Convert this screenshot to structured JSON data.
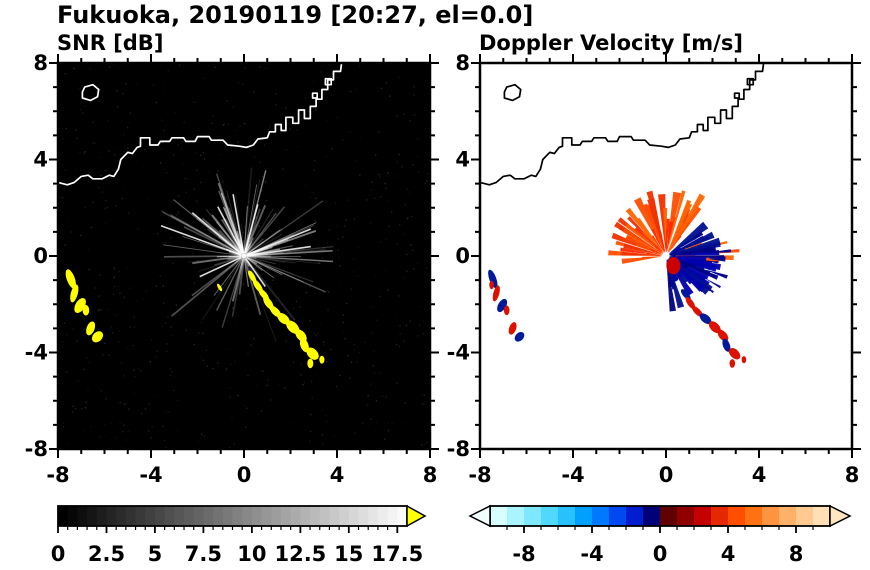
{
  "title": "Fukuoka, 20190119 [20:27, el=0.0]",
  "chart_data": {
    "type": "heatmap",
    "figure": "Dual-panel radar PPI display",
    "station": "Fukuoka",
    "date": "20190119",
    "time": "20:27",
    "elevation": "el=0.0",
    "title": "Fukuoka, 20190119 [20:27, el=0.0]",
    "axes": {
      "xlim": [
        -8,
        8
      ],
      "ylim": [
        -8,
        8
      ],
      "major_ticks": [
        -8,
        -4,
        0,
        4,
        8
      ],
      "minor_tick_step": 1,
      "tick_labels": [
        "-8",
        "-4",
        "0",
        "4",
        "8"
      ]
    },
    "radar_center": [
      0,
      0
    ],
    "panels": [
      {
        "id": "snr",
        "title": "SNR [dB]",
        "background": "#000000",
        "coast_color": "#ffffff",
        "features": [
          "Radial gray noise spokes centered on the radar at the origin",
          "Yellow (>18 dB) clutter cells near x=-7.5..-6.3, y=-0.9..-3.4",
          "Yellow echo chain from (0.3,-0.9) to (3.3,-4.4)"
        ],
        "colorbar": {
          "range": [
            0,
            18
          ],
          "tick_values": [
            0,
            2.5,
            5,
            7.5,
            10,
            12.5,
            15,
            17.5
          ],
          "tick_labels": [
            "0",
            "2.5",
            "5",
            "7.5",
            "10",
            "12.5",
            "15",
            "17.5"
          ],
          "colormap": "grayscale",
          "segments": 36,
          "over_color": "#ffff00"
        },
        "noise": {
          "count": 650,
          "seed": 3,
          "color": "#909090"
        },
        "spokes": {
          "count": 160,
          "sector_extra": 70,
          "seed": 11,
          "r0": 0.12,
          "len_min": 0.5,
          "len_max": 4.2,
          "sectors": [
            [
              55,
              185
            ],
            [
              -30,
              40
            ]
          ],
          "color": "#ffffff"
        },
        "bright_spokes": [
          {
            "angle": 160,
            "len": 3.8
          },
          {
            "angle": 100,
            "len": 2.7
          },
          {
            "angle": 118,
            "len": 2.4
          },
          {
            "angle": 22,
            "len": 3.1
          },
          {
            "angle": 8,
            "len": 2.9
          },
          {
            "angle": 205,
            "len": 2.1
          },
          {
            "angle": 75,
            "len": 2.3
          },
          {
            "angle": 140,
            "len": 2.9
          },
          {
            "angle": -55,
            "len": 1.6
          }
        ],
        "cells_color": "#ffff00",
        "cells": [
          {
            "x": -7.45,
            "y": -0.95,
            "rx": 0.17,
            "ry": 0.42,
            "rot": -20
          },
          {
            "x": -7.3,
            "y": -1.55,
            "rx": 0.15,
            "ry": 0.38,
            "rot": 15
          },
          {
            "x": -7.05,
            "y": -2.05,
            "rx": 0.2,
            "ry": 0.34,
            "rot": 30
          },
          {
            "x": -6.8,
            "y": -2.25,
            "rx": 0.14,
            "ry": 0.22,
            "rot": 0
          },
          {
            "x": -6.6,
            "y": -3.0,
            "rx": 0.17,
            "ry": 0.3,
            "rot": 20
          },
          {
            "x": -6.3,
            "y": -3.35,
            "rx": 0.2,
            "ry": 0.26,
            "rot": 45
          },
          {
            "x": 0.35,
            "y": -0.85,
            "rx": 0.11,
            "ry": 0.28,
            "rot": -30
          },
          {
            "x": 0.6,
            "y": -1.25,
            "rx": 0.13,
            "ry": 0.32,
            "rot": -35
          },
          {
            "x": 0.85,
            "y": -1.6,
            "rx": 0.13,
            "ry": 0.3,
            "rot": -40
          },
          {
            "x": 1.05,
            "y": -1.95,
            "rx": 0.15,
            "ry": 0.32,
            "rot": -35
          },
          {
            "x": 1.35,
            "y": -2.3,
            "rx": 0.15,
            "ry": 0.3,
            "rot": -45
          },
          {
            "x": 1.7,
            "y": -2.6,
            "rx": 0.19,
            "ry": 0.3,
            "rot": -50
          },
          {
            "x": 2.1,
            "y": -2.95,
            "rx": 0.21,
            "ry": 0.33,
            "rot": -45
          },
          {
            "x": 2.45,
            "y": -3.3,
            "rx": 0.19,
            "ry": 0.3,
            "rot": -40
          },
          {
            "x": 2.6,
            "y": -3.7,
            "rx": 0.17,
            "ry": 0.3,
            "rot": -20
          },
          {
            "x": 2.95,
            "y": -4.05,
            "rx": 0.21,
            "ry": 0.3,
            "rot": -45
          },
          {
            "x": 2.85,
            "y": -4.45,
            "rx": 0.13,
            "ry": 0.2,
            "rot": 0
          },
          {
            "x": 3.35,
            "y": -4.3,
            "rx": 0.11,
            "ry": 0.16,
            "rot": 0
          },
          {
            "x": -1.05,
            "y": -1.3,
            "rx": 0.07,
            "ry": 0.18,
            "rot": -30
          }
        ]
      },
      {
        "id": "vel",
        "title": "Doppler Velocity [m/s]",
        "background": "#ffffff",
        "coast_color": "#000000",
        "features": [
          "Orange/red positive Doppler fan north-west of radar (~+2..+4 m/s)",
          "Dark blue negative Doppler fan south-east of radar (~-1..-3 m/s)",
          "Small red/blue cells matching the SNR clutter locations"
        ],
        "colorbar": {
          "range": [
            -10,
            10
          ],
          "tick_values": [
            -8,
            -4,
            0,
            4,
            8
          ],
          "tick_labels": [
            "-8",
            "-4",
            "0",
            "4",
            "8"
          ],
          "segments": 20,
          "cell_colors": [
            "#d8ffff",
            "#aaf4ff",
            "#7de8ff",
            "#50d8ff",
            "#28c0ff",
            "#00a0ff",
            "#0078ff",
            "#0048f0",
            "#001ed0",
            "#000078",
            "#600000",
            "#900000",
            "#c40000",
            "#e62800",
            "#ff4e00",
            "#ff7214",
            "#ff9440",
            "#ffb168",
            "#ffc990",
            "#ffdfb4"
          ],
          "under_color": "#f0ffff",
          "over_color": "#ffe6c0"
        },
        "fans": [
          {
            "name": "positive-velocity-fan",
            "seed": 21,
            "count": 75,
            "angles": [
              50,
              190
            ],
            "r": [
              0.4,
              3.1
            ],
            "r0": 0.16,
            "pow": 1.2,
            "halfw": 2.4,
            "colors": [
              "#ff2600",
              "#ff4d00",
              "#ff6400",
              "#f03000"
            ]
          },
          {
            "name": "positive-right-streaks",
            "seed": 5,
            "count": 10,
            "angles": [
              -8,
              22
            ],
            "r": [
              1.0,
              3.2
            ],
            "r0": 0.2,
            "pow": 1,
            "halfw": 1.6,
            "colors": [
              "#ff4d00",
              "#ff6400"
            ]
          },
          {
            "name": "negative-velocity-fan",
            "seed": 33,
            "count": 95,
            "angles": [
              -85,
              38
            ],
            "r": [
              0.3,
              2.5
            ],
            "r0": 0.14,
            "pow": 1.4,
            "halfw": 3.2,
            "colors": [
              "#000080",
              "#0000b2",
              "#001090"
            ]
          },
          {
            "name": "negative-outliers",
            "seed": 8,
            "count": 12,
            "angles": [
              -40,
              25
            ],
            "r": [
              2.2,
              3.0
            ],
            "r0": 1.8,
            "pow": 1,
            "halfw": 1.2,
            "colors": [
              "#000090"
            ]
          }
        ],
        "inner_patch": {
          "x": 0.32,
          "y": -0.4,
          "rx": 0.3,
          "ry": 0.36,
          "color": "#cc0000"
        },
        "cells": [
          {
            "x": -7.45,
            "y": -0.95,
            "rx": 0.15,
            "ry": 0.4,
            "rot": -20,
            "color": "#001a99"
          },
          {
            "x": -7.5,
            "y": -1.2,
            "rx": 0.1,
            "ry": 0.18,
            "rot": 0,
            "color": "#dd1100"
          },
          {
            "x": -7.3,
            "y": -1.55,
            "rx": 0.13,
            "ry": 0.34,
            "rot": 15,
            "color": "#dd1100"
          },
          {
            "x": -7.05,
            "y": -2.05,
            "rx": 0.17,
            "ry": 0.3,
            "rot": 30,
            "color": "#001a99"
          },
          {
            "x": -6.85,
            "y": -2.25,
            "rx": 0.12,
            "ry": 0.2,
            "rot": 0,
            "color": "#dd1100"
          },
          {
            "x": -6.6,
            "y": -3.0,
            "rx": 0.15,
            "ry": 0.27,
            "rot": 20,
            "color": "#dd1100"
          },
          {
            "x": -6.3,
            "y": -3.35,
            "rx": 0.17,
            "ry": 0.23,
            "rot": 45,
            "color": "#001a99"
          },
          {
            "x": 0.85,
            "y": -1.6,
            "rx": 0.12,
            "ry": 0.28,
            "rot": -40,
            "color": "#001a99"
          },
          {
            "x": 1.05,
            "y": -1.95,
            "rx": 0.13,
            "ry": 0.3,
            "rot": -35,
            "color": "#dd1100"
          },
          {
            "x": 1.35,
            "y": -2.3,
            "rx": 0.13,
            "ry": 0.28,
            "rot": -45,
            "color": "#dd1100"
          },
          {
            "x": 1.7,
            "y": -2.6,
            "rx": 0.17,
            "ry": 0.28,
            "rot": -50,
            "color": "#001a99"
          },
          {
            "x": 2.1,
            "y": -2.95,
            "rx": 0.19,
            "ry": 0.3,
            "rot": -45,
            "color": "#dd1100"
          },
          {
            "x": 2.45,
            "y": -3.3,
            "rx": 0.17,
            "ry": 0.28,
            "rot": -40,
            "color": "#dd1100"
          },
          {
            "x": 2.6,
            "y": -3.7,
            "rx": 0.15,
            "ry": 0.28,
            "rot": -20,
            "color": "#001a99"
          },
          {
            "x": 2.95,
            "y": -4.05,
            "rx": 0.19,
            "ry": 0.28,
            "rot": -45,
            "color": "#dd1100"
          },
          {
            "x": 2.85,
            "y": -4.45,
            "rx": 0.12,
            "ry": 0.18,
            "rot": 0,
            "color": "#dd1100"
          },
          {
            "x": 3.35,
            "y": -4.3,
            "rx": 0.1,
            "ry": 0.15,
            "rot": 0,
            "color": "#dd1100"
          }
        ],
        "center_hole": {
          "r": 0.14,
          "color": "#ffffff"
        }
      }
    ],
    "coastline": {
      "main": [
        [
          -8,
          3.05
        ],
        [
          -7.6,
          2.95
        ],
        [
          -7.3,
          3.05
        ],
        [
          -7,
          3.3
        ],
        [
          -6.7,
          3.35
        ],
        [
          -6.5,
          3.2
        ],
        [
          -6.1,
          3.2
        ],
        [
          -5.8,
          3.35
        ],
        [
          -5.6,
          3.3
        ],
        [
          -5.4,
          3.6
        ],
        [
          -5.3,
          4
        ],
        [
          -5,
          4.3
        ],
        [
          -4.8,
          4.25
        ],
        [
          -4.6,
          4.5
        ],
        [
          -4.45,
          4.55
        ],
        [
          -4.45,
          4.9
        ],
        [
          -4.05,
          4.9
        ],
        [
          -4.05,
          4.6
        ],
        [
          -3.7,
          4.6
        ],
        [
          -3.6,
          4.75
        ],
        [
          -3.2,
          4.75
        ],
        [
          -3.1,
          4.9
        ],
        [
          -2.6,
          4.9
        ],
        [
          -2.5,
          4.75
        ],
        [
          -2.1,
          4.75
        ],
        [
          -2,
          4.95
        ],
        [
          -1.5,
          4.95
        ],
        [
          -1.4,
          4.8
        ],
        [
          -0.9,
          4.8
        ],
        [
          -0.7,
          4.6
        ],
        [
          -0.2,
          4.55
        ],
        [
          0.1,
          4.5
        ],
        [
          0.4,
          4.6
        ],
        [
          0.6,
          4.85
        ],
        [
          1,
          4.9
        ],
        [
          1.1,
          5.15
        ],
        [
          1.35,
          5.15
        ],
        [
          1.35,
          5.45
        ],
        [
          1.6,
          5.45
        ],
        [
          1.6,
          5.2
        ],
        [
          1.8,
          5.2
        ],
        [
          1.8,
          5.75
        ],
        [
          2.1,
          5.75
        ],
        [
          2.1,
          5.5
        ],
        [
          2.35,
          5.5
        ],
        [
          2.35,
          6.05
        ],
        [
          2.6,
          6.05
        ],
        [
          2.6,
          5.7
        ],
        [
          2.85,
          5.7
        ],
        [
          2.85,
          6.2
        ],
        [
          3.1,
          6.2
        ],
        [
          3.1,
          6.5
        ],
        [
          3.35,
          6.5
        ],
        [
          3.35,
          6.9
        ],
        [
          3.6,
          6.9
        ],
        [
          3.6,
          7.3
        ],
        [
          3.85,
          7.3
        ],
        [
          3.85,
          7.65
        ],
        [
          4.15,
          7.65
        ],
        [
          4.2,
          8
        ]
      ],
      "island": [
        [
          -6.95,
          6.55
        ],
        [
          -6.6,
          6.45
        ],
        [
          -6.3,
          6.6
        ],
        [
          -6.25,
          6.9
        ],
        [
          -6.5,
          7.1
        ],
        [
          -6.85,
          7
        ],
        [
          -6.95,
          6.8
        ]
      ],
      "piers": [
        [
          [
            2.95,
            6.55
          ],
          [
            3.15,
            6.55
          ],
          [
            3.15,
            6.75
          ],
          [
            2.95,
            6.75
          ]
        ],
        [
          [
            3.5,
            7.1
          ],
          [
            3.75,
            7.1
          ],
          [
            3.75,
            7.35
          ],
          [
            3.5,
            7.35
          ]
        ]
      ]
    }
  }
}
